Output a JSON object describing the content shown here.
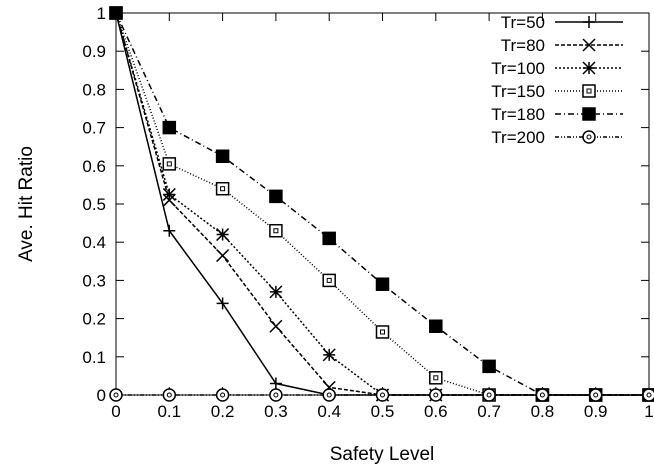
{
  "chart_data": {
    "type": "line",
    "xlabel": "Safety Level",
    "ylabel": "Ave. Hit Ratio",
    "xlim": [
      0,
      1
    ],
    "ylim": [
      0,
      1
    ],
    "xticks": [
      "0",
      "0.1",
      "0.2",
      "0.3",
      "0.4",
      "0.5",
      "0.6",
      "0.7",
      "0.8",
      "0.9",
      "1"
    ],
    "yticks": [
      "0",
      "0.1",
      "0.2",
      "0.3",
      "0.4",
      "0.5",
      "0.6",
      "0.7",
      "0.8",
      "0.9",
      "1"
    ],
    "grid": false,
    "legend_position": "top-right",
    "x": [
      0,
      0.1,
      0.2,
      0.3,
      0.4,
      0.5,
      0.6,
      0.7,
      0.8,
      0.9,
      1
    ],
    "series": [
      {
        "name": "Tr=50",
        "marker": "plus",
        "dash": "solid",
        "values": [
          1,
          0.43,
          0.24,
          0.03,
          0,
          0,
          0,
          0,
          0,
          0,
          0
        ]
      },
      {
        "name": "Tr=80",
        "marker": "cross",
        "dash": "dashed",
        "values": [
          1,
          0.51,
          0.365,
          0.18,
          0.02,
          0,
          0,
          0,
          0,
          0,
          0
        ]
      },
      {
        "name": "Tr=100",
        "marker": "star",
        "dash": "dotted",
        "values": [
          1,
          0.525,
          0.42,
          0.27,
          0.105,
          0,
          0,
          0,
          0,
          0,
          0
        ]
      },
      {
        "name": "Tr=150",
        "marker": "open-square",
        "dash": "fine-dotted",
        "values": [
          1,
          0.605,
          0.54,
          0.43,
          0.3,
          0.165,
          0.045,
          0,
          0,
          0,
          0
        ]
      },
      {
        "name": "Tr=180",
        "marker": "filled-square",
        "dash": "dash-dot",
        "values": [
          1,
          0.7,
          0.625,
          0.52,
          0.41,
          0.29,
          0.18,
          0.075,
          0,
          0,
          0
        ]
      },
      {
        "name": "Tr=200",
        "marker": "open-circle",
        "dash": "dash-dot-dot",
        "values": [
          0,
          0,
          0,
          0,
          0,
          0,
          0,
          0,
          0,
          0,
          0
        ]
      }
    ]
  }
}
